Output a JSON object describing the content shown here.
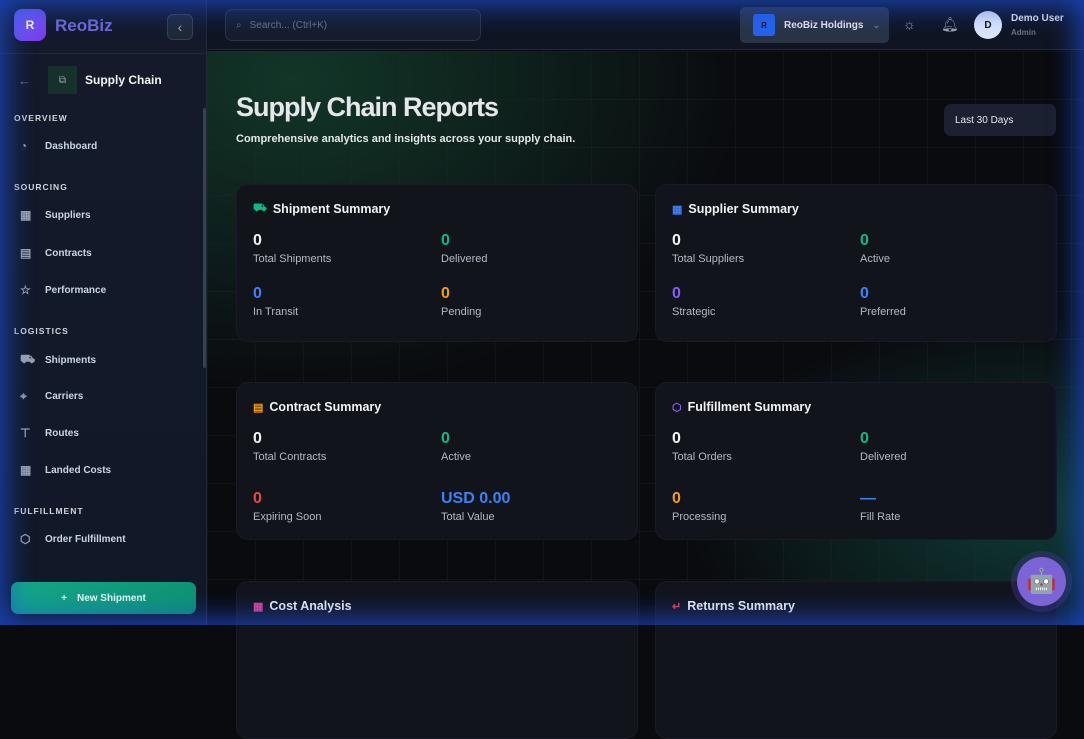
{
  "app": {
    "logo_letter": "R",
    "brand": "ReoBiz"
  },
  "sidebar": {
    "module": "Supply Chain",
    "sections": [
      {
        "title": "OVERVIEW",
        "items": [
          {
            "label": "Dashboard",
            "icon": "gauge-icon"
          }
        ]
      },
      {
        "title": "SOURCING",
        "items": [
          {
            "label": "Suppliers",
            "icon": "building-icon"
          },
          {
            "label": "Contracts",
            "icon": "document-icon"
          },
          {
            "label": "Performance",
            "icon": "star-icon"
          }
        ]
      },
      {
        "title": "LOGISTICS",
        "items": [
          {
            "label": "Shipments",
            "icon": "truck-icon"
          },
          {
            "label": "Carriers",
            "icon": "map-pin-icon"
          },
          {
            "label": "Routes",
            "icon": "signpost-icon"
          },
          {
            "label": "Landed Costs",
            "icon": "calculator-icon"
          }
        ]
      },
      {
        "title": "FULFILLMENT",
        "items": [
          {
            "label": "Order Fulfillment",
            "icon": "box-icon"
          }
        ]
      }
    ],
    "new_button": "New Shipment"
  },
  "header": {
    "search_placeholder": "Search... (Ctrl+K)",
    "org_letter": "R",
    "org": "ReoBiz Holdings",
    "user_initial": "D",
    "user_name": "Demo User",
    "user_role": "Admin"
  },
  "page": {
    "title": "Supply Chain Reports",
    "subtitle": "Comprehensive analytics and insights across your supply chain.",
    "range": "Last 30 Days"
  },
  "cards": [
    {
      "title": "Shipment Summary",
      "icon": "truck-icon",
      "icon_color": "#10b981",
      "stats": [
        {
          "value": "0",
          "label": "Total Shipments",
          "color": "#f3f4f6"
        },
        {
          "value": "0",
          "label": "Delivered",
          "color": "#10b981"
        },
        {
          "value": "0",
          "label": "In Transit",
          "color": "#3b82f6"
        },
        {
          "value": "0",
          "label": "Pending",
          "color": "#f59e0b"
        }
      ]
    },
    {
      "title": "Supplier Summary",
      "icon": "building-icon",
      "icon_color": "#3b82f6",
      "stats": [
        {
          "value": "0",
          "label": "Total Suppliers",
          "color": "#f3f4f6"
        },
        {
          "value": "0",
          "label": "Active",
          "color": "#10b981"
        },
        {
          "value": "0",
          "label": "Strategic",
          "color": "#8b5cf6"
        },
        {
          "value": "0",
          "label": "Preferred",
          "color": "#3b82f6"
        }
      ]
    },
    {
      "title": "Contract Summary",
      "icon": "document-icon",
      "icon_color": "#f59e0b",
      "stats": [
        {
          "value": "0",
          "label": "Total Contracts",
          "color": "#f3f4f6"
        },
        {
          "value": "0",
          "label": "Active",
          "color": "#10b981"
        },
        {
          "value": "0",
          "label": "Expiring Soon",
          "color": "#ef4444"
        },
        {
          "value": "USD 0.00",
          "label": "Total Value",
          "color": "#3b82f6"
        }
      ]
    },
    {
      "title": "Fulfillment Summary",
      "icon": "box-icon",
      "icon_color": "#8b5cf6",
      "stats": [
        {
          "value": "0",
          "label": "Total Orders",
          "color": "#f3f4f6"
        },
        {
          "value": "0",
          "label": "Delivered",
          "color": "#10b981"
        },
        {
          "value": "0",
          "label": "Processing",
          "color": "#f59e0b"
        },
        {
          "value": "—",
          "label": "Fill Rate",
          "color": "#3b82f6"
        }
      ]
    },
    {
      "title": "Cost Analysis",
      "icon": "calculator-icon",
      "icon_color": "#ec4899",
      "stats": []
    },
    {
      "title": "Returns Summary",
      "icon": "return-arrow-icon",
      "icon_color": "#ef4444",
      "stats": []
    }
  ]
}
